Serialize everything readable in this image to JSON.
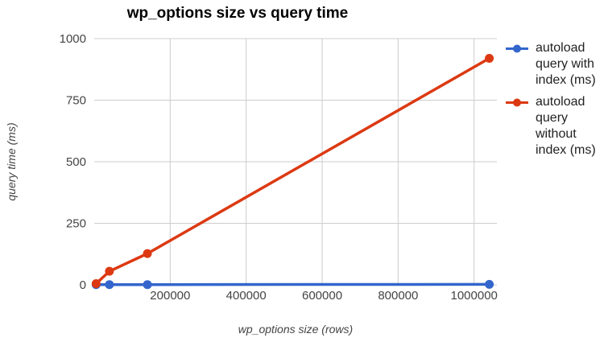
{
  "chart": {
    "title": "wp_options size vs query time",
    "x_axis_title": "wp_options size (rows)",
    "y_axis_title": "query time (ms)"
  },
  "chart_data": {
    "type": "line",
    "title": "wp_options size vs query time",
    "xlabel": "wp_options size (rows)",
    "ylabel": "query time (ms)",
    "x": [
      5000,
      40000,
      140000,
      1040000
    ],
    "series": [
      {
        "name": "autoload query with index (ms)",
        "color": "#3366cc",
        "values": [
          1,
          1,
          1,
          2
        ]
      },
      {
        "name": "autoload query without index (ms)",
        "color": "#dc3912",
        "values": [
          5,
          55,
          127,
          920
        ]
      }
    ],
    "xlim": [
      0,
      1060000
    ],
    "ylim": [
      0,
      1000
    ],
    "x_ticks": [
      200000,
      400000,
      600000,
      800000,
      1000000
    ],
    "x_tick_labels": [
      "200000",
      "400000",
      "600000",
      "800000",
      "1000000"
    ],
    "y_ticks": [
      0,
      250,
      500,
      750,
      1000
    ],
    "y_tick_labels": [
      "0",
      "250",
      "500",
      "750",
      "1000"
    ],
    "grid": true,
    "legend_position": "right",
    "gridline_color": "#cccccc",
    "tick_label_color": "#444444"
  }
}
